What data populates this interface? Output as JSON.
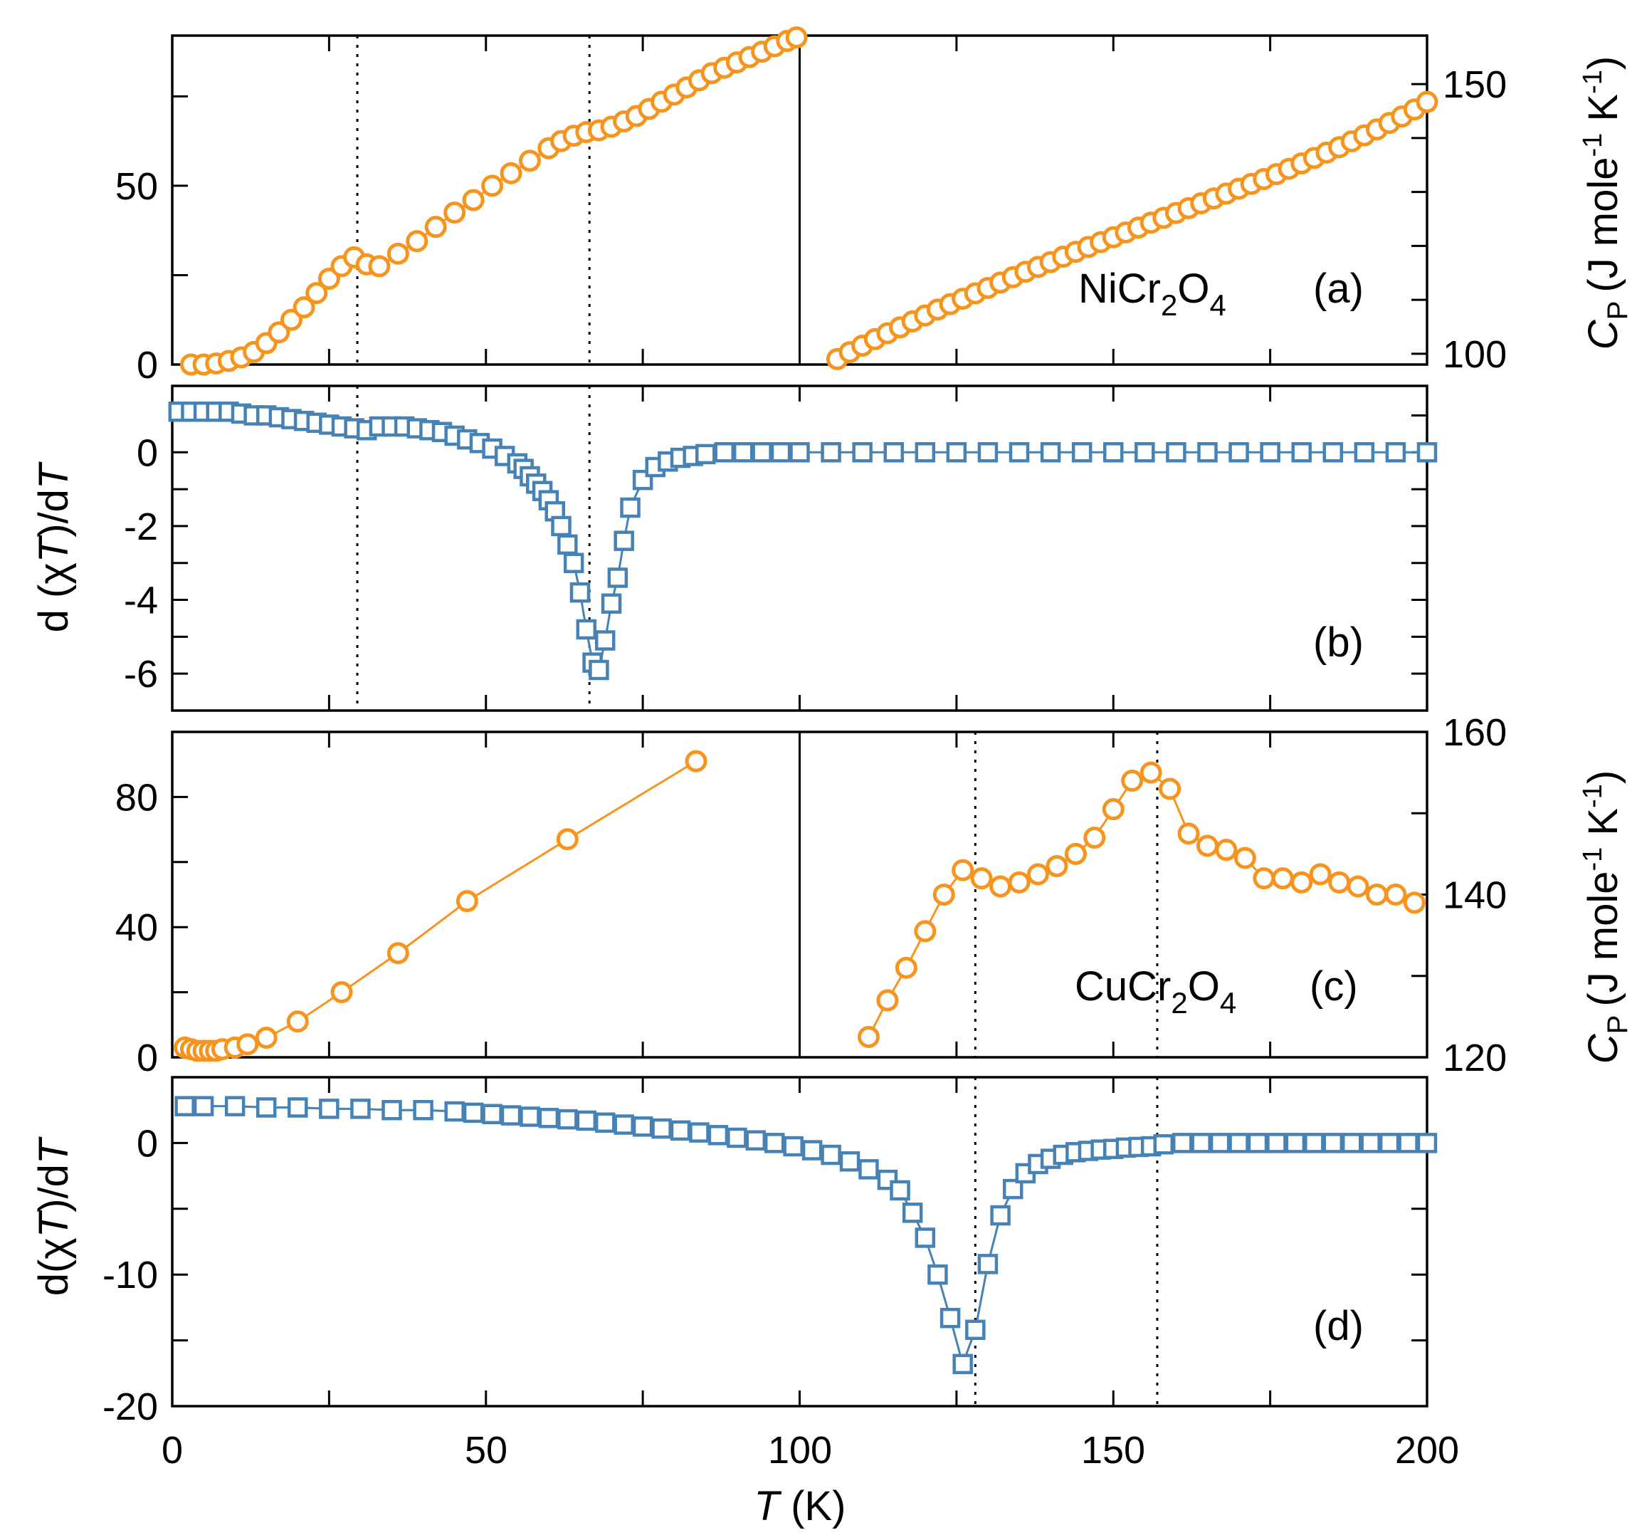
{
  "colors": {
    "orange": "#F7941D",
    "blue": "#4682B4"
  },
  "x_axis": {
    "label_symbol": "T",
    "label_unit": "(K)",
    "ticks": [
      "0",
      "50",
      "100",
      "150",
      "200"
    ],
    "range": [
      0,
      200
    ]
  },
  "chart_data": [
    {
      "panel": "a",
      "type": "scatter",
      "compound_label": "NiCr",
      "compound_sub1": "2",
      "compound_o": "O",
      "compound_sub2": "4",
      "panel_label": "(a)",
      "marker": "circle",
      "color": "#F7941D",
      "left": {
        "xlim": [
          0,
          100
        ],
        "ylim": [
          0,
          92
        ],
        "ticks": [
          "0",
          "50"
        ],
        "tick_values": [
          0,
          50
        ]
      },
      "right": {
        "xlim": [
          100,
          200
        ],
        "ylim": [
          98,
          159
        ],
        "ticks": [
          "100",
          "150"
        ],
        "tick_values": [
          100,
          150
        ],
        "ylabel_symbol": "C",
        "ylabel_sub": "P",
        "ylabel_unit": "(J mole",
        "ylabel_exp": "-1",
        "ylabel_end": " K",
        "ylabel_exp2": "-1",
        "ylabel_close": ")"
      },
      "vlines": [
        29.5,
        66.5
      ],
      "series_left": {
        "x": [
          3,
          5,
          7,
          9,
          11,
          13,
          15,
          17,
          19,
          21,
          23,
          25,
          27,
          29,
          31,
          33,
          36,
          39,
          42,
          45,
          48,
          51,
          54,
          57,
          60,
          62,
          64,
          66,
          68,
          70,
          72,
          74,
          76,
          78,
          80,
          82,
          84,
          86,
          88,
          90,
          92,
          94,
          96,
          98,
          99.5
        ],
        "y": [
          0,
          0,
          0.3,
          1,
          2,
          3.5,
          6,
          9,
          12.5,
          16,
          20,
          24,
          27.5,
          30,
          28,
          27.5,
          31,
          34.5,
          38.5,
          42.5,
          46,
          50,
          53.5,
          57,
          60.5,
          62.5,
          64,
          65,
          65.5,
          66.5,
          68,
          69.5,
          71.5,
          73.5,
          75.5,
          77.5,
          79.5,
          81.5,
          83,
          84.5,
          86,
          87.5,
          89,
          90.5,
          91.5
        ]
      },
      "series_right": {
        "x": [
          106,
          108,
          110,
          112,
          114,
          116,
          118,
          120,
          122,
          124,
          126,
          128,
          130,
          132,
          134,
          136,
          138,
          140,
          142,
          144,
          146,
          148,
          150,
          152,
          154,
          156,
          158,
          160,
          162,
          164,
          166,
          168,
          170,
          172,
          174,
          176,
          178,
          180,
          182,
          184,
          186,
          188,
          190,
          192,
          194,
          196,
          198,
          200
        ],
        "y": [
          99,
          100.3,
          101.5,
          102.7,
          103.8,
          104.9,
          106,
          107.1,
          108.2,
          109.2,
          110.2,
          111.2,
          112.2,
          113.2,
          114.2,
          115.2,
          116.1,
          117,
          118,
          118.9,
          119.8,
          120.7,
          121.6,
          122.5,
          123.4,
          124.3,
          125.2,
          126.1,
          127,
          127.9,
          128.8,
          129.7,
          130.6,
          131.5,
          132.4,
          133.3,
          134.3,
          135.3,
          136.3,
          137.3,
          138.3,
          139.4,
          140.5,
          141.6,
          142.8,
          144,
          145.3,
          146.7
        ]
      }
    },
    {
      "panel": "b",
      "type": "scatter",
      "panel_label": "(b)",
      "marker": "square",
      "color": "#4682B4",
      "ylabel": "d (χT)/dT",
      "ylabel_parts": [
        "d (",
        "χ",
        "T",
        ")/d",
        "T"
      ],
      "xlim": [
        0,
        200
      ],
      "ylim": [
        -7,
        1.8
      ],
      "ticks": [
        "0",
        "-2",
        "-4",
        "-6"
      ],
      "tick_values": [
        0,
        -2,
        -4,
        -6
      ],
      "minor_ticks": [
        1,
        -1,
        -3,
        -5,
        -7
      ],
      "vlines": [
        29.5,
        66.5
      ],
      "series": {
        "x": [
          1,
          3,
          5,
          7,
          9,
          11,
          13,
          15,
          17,
          19,
          21,
          23,
          25,
          27,
          29,
          31,
          33,
          35,
          37,
          39,
          41,
          43,
          45,
          47,
          49,
          51,
          53,
          55,
          56,
          57,
          58,
          59,
          60,
          61,
          62,
          63,
          64,
          65,
          66,
          67,
          68,
          69,
          70,
          71,
          72,
          73,
          75,
          77,
          79,
          81,
          83,
          85,
          88,
          91,
          94,
          97,
          100,
          105,
          110,
          115,
          120,
          125,
          130,
          135,
          140,
          145,
          150,
          155,
          160,
          165,
          170,
          175,
          180,
          185,
          190,
          195,
          200
        ],
        "y": [
          1.1,
          1.1,
          1.1,
          1.1,
          1.1,
          1.05,
          1.0,
          1.0,
          0.95,
          0.9,
          0.85,
          0.8,
          0.75,
          0.7,
          0.65,
          0.6,
          0.7,
          0.7,
          0.7,
          0.65,
          0.6,
          0.55,
          0.45,
          0.35,
          0.25,
          0.1,
          -0.1,
          -0.3,
          -0.45,
          -0.65,
          -0.85,
          -1.05,
          -1.3,
          -1.6,
          -2.0,
          -2.5,
          -3.0,
          -3.8,
          -4.8,
          -5.7,
          -5.9,
          -5.1,
          -4.1,
          -3.4,
          -2.4,
          -1.5,
          -0.75,
          -0.4,
          -0.25,
          -0.15,
          -0.1,
          -0.05,
          0,
          0,
          0,
          0,
          0,
          0,
          0,
          0,
          0,
          0,
          0,
          0,
          0,
          0,
          0,
          0,
          0,
          0,
          0,
          0,
          0,
          0,
          0,
          0,
          0
        ]
      }
    },
    {
      "panel": "c",
      "type": "line",
      "compound_label": "CuCr",
      "compound_sub1": "2",
      "compound_o": "O",
      "compound_sub2": "4",
      "panel_label": "(c)",
      "marker": "circle",
      "color": "#F7941D",
      "left": {
        "xlim": [
          0,
          100
        ],
        "ylim": [
          0,
          100
        ],
        "ticks": [
          "0",
          "40",
          "80"
        ],
        "tick_values": [
          0,
          40,
          80
        ],
        "minor_ticks": [
          20,
          60,
          100
        ]
      },
      "right": {
        "xlim": [
          100,
          200
        ],
        "ylim": [
          120,
          160
        ],
        "ticks": [
          "120",
          "140",
          "160"
        ],
        "tick_values": [
          120,
          140,
          160
        ],
        "minor_ticks": [
          130,
          150
        ],
        "ylabel_symbol": "C",
        "ylabel_sub": "P",
        "ylabel_unit": "(J mole",
        "ylabel_exp": "-1",
        "ylabel_end": " K",
        "ylabel_exp2": "-1",
        "ylabel_close": ")"
      },
      "vlines": [
        128,
        157
      ],
      "series_left": {
        "x": [
          2,
          3,
          4,
          5,
          6,
          7,
          8,
          10,
          12,
          15,
          20,
          27,
          36,
          47,
          63,
          83.5
        ],
        "y": [
          3,
          2.5,
          2,
          2,
          2,
          2,
          2.5,
          3,
          4,
          6,
          11,
          20,
          32,
          48,
          67,
          91
        ]
      },
      "series_right": {
        "x": [
          111,
          114,
          117,
          120,
          123,
          126,
          129,
          132,
          135,
          138,
          141,
          144,
          147,
          150,
          153,
          156,
          159,
          162,
          165,
          168,
          171,
          174,
          177,
          180,
          183,
          186,
          189,
          192,
          195,
          198
        ],
        "y": [
          122.5,
          127,
          131,
          135.5,
          140,
          143,
          142,
          141,
          141.5,
          142.5,
          143.5,
          145,
          147,
          150.5,
          154,
          155,
          153,
          147.5,
          146,
          145.5,
          144.5,
          142,
          142,
          141.5,
          142.5,
          141.5,
          141,
          140,
          140,
          139
        ]
      }
    },
    {
      "panel": "d",
      "type": "scatter",
      "panel_label": "(d)",
      "marker": "square",
      "color": "#4682B4",
      "ylabel": "d(χT)/dT",
      "ylabel_parts": [
        "d(",
        "χ",
        "T",
        ")/d",
        "T"
      ],
      "xlim": [
        0,
        200
      ],
      "ylim": [
        -20,
        5
      ],
      "ticks": [
        "0",
        "-10",
        "-20"
      ],
      "tick_values": [
        0,
        -10,
        -20
      ],
      "minor_ticks": [
        -5,
        -15,
        5
      ],
      "vlines": [
        128,
        157
      ],
      "series": {
        "x": [
          2,
          5,
          10,
          15,
          20,
          25,
          30,
          35,
          40,
          45,
          48,
          51,
          54,
          57,
          60,
          63,
          66,
          69,
          72,
          75,
          78,
          81,
          84,
          87,
          90,
          93,
          96,
          99,
          102,
          105,
          108,
          111,
          114,
          116,
          118,
          120,
          122,
          124,
          126,
          128,
          130,
          132,
          134,
          136,
          138,
          140,
          142,
          144,
          146,
          148,
          150,
          152,
          154,
          156,
          158,
          161,
          164,
          167,
          170,
          173,
          176,
          179,
          182,
          185,
          188,
          191,
          194,
          197,
          200
        ],
        "y": [
          2.8,
          2.8,
          2.8,
          2.7,
          2.7,
          2.6,
          2.6,
          2.5,
          2.5,
          2.4,
          2.3,
          2.2,
          2.1,
          2.0,
          1.9,
          1.8,
          1.7,
          1.55,
          1.4,
          1.25,
          1.1,
          0.95,
          0.8,
          0.6,
          0.4,
          0.2,
          0,
          -0.25,
          -0.55,
          -0.9,
          -1.4,
          -2.0,
          -2.8,
          -3.6,
          -5.3,
          -7.2,
          -10,
          -13.3,
          -16.8,
          -14.2,
          -9.2,
          -5.5,
          -3.5,
          -2.3,
          -1.6,
          -1.2,
          -0.9,
          -0.7,
          -0.6,
          -0.5,
          -0.45,
          -0.35,
          -0.3,
          -0.25,
          -0.1,
          0,
          0,
          0,
          0,
          0,
          0,
          0,
          0,
          0,
          0,
          0,
          0,
          0,
          0
        ]
      }
    }
  ]
}
